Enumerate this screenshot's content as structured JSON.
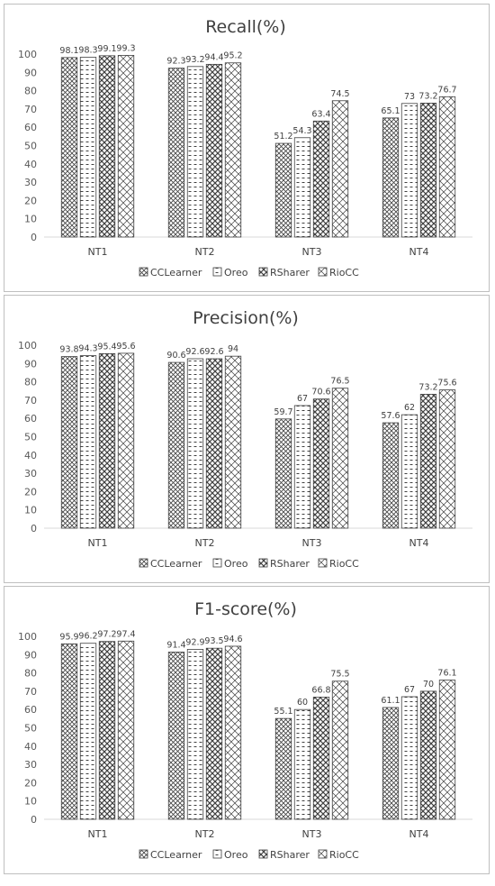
{
  "chart_data": [
    {
      "type": "bar",
      "title": "Recall(%)",
      "categories": [
        "NT1",
        "NT2",
        "NT3",
        "NT4"
      ],
      "ylim": [
        0,
        100
      ],
      "yticks": [
        0,
        10,
        20,
        30,
        40,
        50,
        60,
        70,
        80,
        90,
        100
      ],
      "grid": false,
      "legend": "bottom",
      "series": [
        {
          "name": "CCLearner",
          "values": [
            98.1,
            92.3,
            51.2,
            65.1
          ],
          "pattern": "diag-cross"
        },
        {
          "name": "Oreo",
          "values": [
            98.3,
            93.2,
            54.3,
            73
          ],
          "pattern": "dashes"
        },
        {
          "name": "RSharer",
          "values": [
            99.1,
            94.4,
            63.4,
            73.2
          ],
          "pattern": "crosshatch"
        },
        {
          "name": "RioCC",
          "values": [
            99.3,
            95.2,
            74.5,
            76.7
          ],
          "pattern": "grid"
        }
      ]
    },
    {
      "type": "bar",
      "title": "Precision(%)",
      "categories": [
        "NT1",
        "NT2",
        "NT3",
        "NT4"
      ],
      "ylim": [
        0,
        100
      ],
      "yticks": [
        0,
        10,
        20,
        30,
        40,
        50,
        60,
        70,
        80,
        90,
        100
      ],
      "grid": false,
      "legend": "bottom",
      "series": [
        {
          "name": "CCLearner",
          "values": [
            93.8,
            90.6,
            59.7,
            57.6
          ],
          "pattern": "diag-cross"
        },
        {
          "name": "Oreo",
          "values": [
            94.3,
            92.6,
            67,
            62
          ],
          "pattern": "dashes"
        },
        {
          "name": "RSharer",
          "values": [
            95.4,
            92.6,
            70.6,
            73.2
          ],
          "pattern": "crosshatch"
        },
        {
          "name": "RioCC",
          "values": [
            95.6,
            94,
            76.5,
            75.6
          ],
          "pattern": "grid"
        }
      ]
    },
    {
      "type": "bar",
      "title": "F1-score(%)",
      "categories": [
        "NT1",
        "NT2",
        "NT3",
        "NT4"
      ],
      "ylim": [
        0,
        100
      ],
      "yticks": [
        0,
        10,
        20,
        30,
        40,
        50,
        60,
        70,
        80,
        90,
        100
      ],
      "grid": false,
      "legend": "bottom",
      "series": [
        {
          "name": "CCLearner",
          "values": [
            95.9,
            91.4,
            55.1,
            61.1
          ],
          "pattern": "diag-cross"
        },
        {
          "name": "Oreo",
          "values": [
            96.2,
            92.9,
            60,
            67
          ],
          "pattern": "dashes"
        },
        {
          "name": "RSharer",
          "values": [
            97.2,
            93.5,
            66.8,
            70
          ],
          "pattern": "crosshatch"
        },
        {
          "name": "RioCC",
          "values": [
            97.4,
            94.6,
            75.5,
            76.1
          ],
          "pattern": "grid"
        }
      ]
    }
  ],
  "colors": {
    "bar_fill": "#ffffff",
    "bar_stroke": "#404040",
    "axis": "#d9d9d9",
    "text": "#595959",
    "panel_border": "#bfbfbf"
  }
}
